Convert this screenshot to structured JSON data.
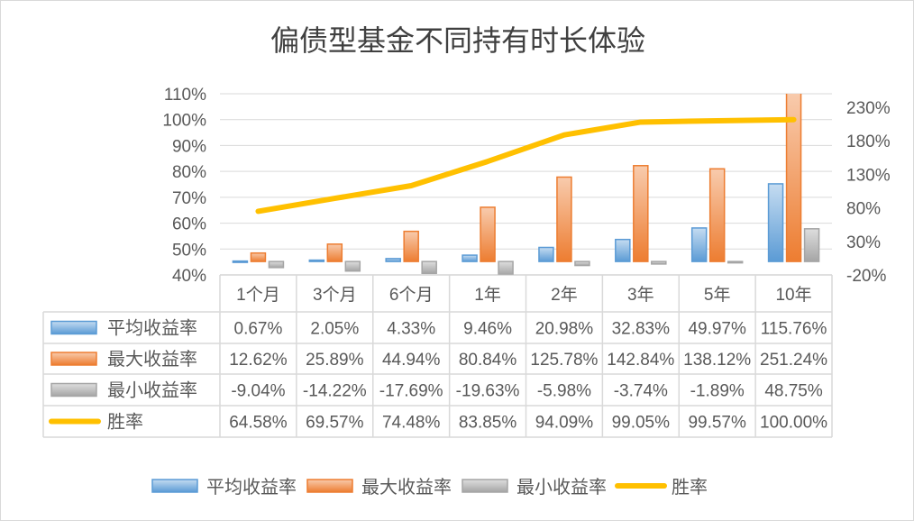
{
  "chart_data": {
    "type": "bar",
    "title": "偏债型基金不同持有时长体验",
    "categories": [
      "1个月",
      "3个月",
      "6个月",
      "1年",
      "2年",
      "3年",
      "5年",
      "10年"
    ],
    "series": [
      {
        "name": "平均收益率",
        "kind": "bar",
        "axis": "right",
        "color": "#5B9BD5",
        "values": [
          0.67,
          2.05,
          4.33,
          9.46,
          20.98,
          32.83,
          49.97,
          115.76
        ],
        "labels": [
          "0.67%",
          "2.05%",
          "4.33%",
          "9.46%",
          "20.98%",
          "32.83%",
          "49.97%",
          "115.76%"
        ]
      },
      {
        "name": "最大收益率",
        "kind": "bar",
        "axis": "right",
        "color": "#ED7D31",
        "values": [
          12.62,
          25.89,
          44.94,
          80.84,
          125.78,
          142.84,
          138.12,
          251.24
        ],
        "labels": [
          "12.62%",
          "25.89%",
          "44.94%",
          "80.84%",
          "125.78%",
          "142.84%",
          "138.12%",
          "251.24%"
        ]
      },
      {
        "name": "最小收益率",
        "kind": "bar",
        "axis": "right",
        "color": "#A5A5A5",
        "values": [
          -9.04,
          -14.22,
          -17.69,
          -19.63,
          -5.98,
          -3.74,
          -1.89,
          48.75
        ],
        "labels": [
          "-9.04%",
          "-14.22%",
          "-17.69%",
          "-19.63%",
          "-5.98%",
          "-3.74%",
          "-1.89%",
          "48.75%"
        ]
      },
      {
        "name": "胜率",
        "kind": "line",
        "axis": "left",
        "color": "#FFC000",
        "values": [
          64.58,
          69.57,
          74.48,
          83.85,
          94.09,
          99.05,
          99.57,
          100.0
        ],
        "labels": [
          "64.58%",
          "69.57%",
          "74.48%",
          "83.85%",
          "94.09%",
          "99.05%",
          "99.57%",
          "100.00%"
        ]
      }
    ],
    "left_axis": {
      "min": 40,
      "max": 110,
      "step": 10,
      "ticks": [
        "40%",
        "50%",
        "60%",
        "70%",
        "80%",
        "90%",
        "100%",
        "110%"
      ]
    },
    "right_axis": {
      "min": -20,
      "max": 250,
      "step": 50,
      "ticks": [
        "-20%",
        "30%",
        "80%",
        "130%",
        "180%",
        "230%"
      ]
    },
    "grid": true,
    "legend": "bottom",
    "data_table": true
  }
}
